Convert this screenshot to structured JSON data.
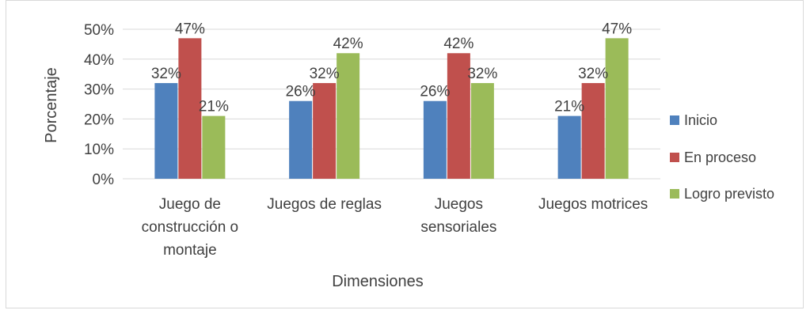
{
  "chart_data": {
    "type": "bar",
    "title": "",
    "xlabel": "Dimensiones",
    "ylabel": "Porcentaje",
    "ylim": [
      0,
      50
    ],
    "y_ticks": [
      0,
      10,
      20,
      30,
      40,
      50
    ],
    "y_tick_labels": [
      "0%",
      "10%",
      "20%",
      "30%",
      "40%",
      "50%"
    ],
    "gridlines": true,
    "legend_position": "right",
    "categories": [
      [
        "Juego de",
        "construcción o",
        "montaje"
      ],
      [
        "Juegos de reglas"
      ],
      [
        "Juegos",
        "sensoriales"
      ],
      [
        "Juegos motrices"
      ]
    ],
    "series": [
      {
        "name": "Inicio",
        "color": "#4f81bd",
        "values": [
          32,
          26,
          26,
          21
        ],
        "labels": [
          "32%",
          "26%",
          "26%",
          "21%"
        ]
      },
      {
        "name": "En proceso",
        "color": "#c0504d",
        "values": [
          47,
          32,
          42,
          32
        ],
        "labels": [
          "47%",
          "32%",
          "42%",
          "32%"
        ]
      },
      {
        "name": "Logro previsto",
        "color": "#9bbb59",
        "values": [
          21,
          42,
          32,
          47
        ],
        "labels": [
          "21%",
          "42%",
          "32%",
          "47%"
        ]
      }
    ]
  }
}
